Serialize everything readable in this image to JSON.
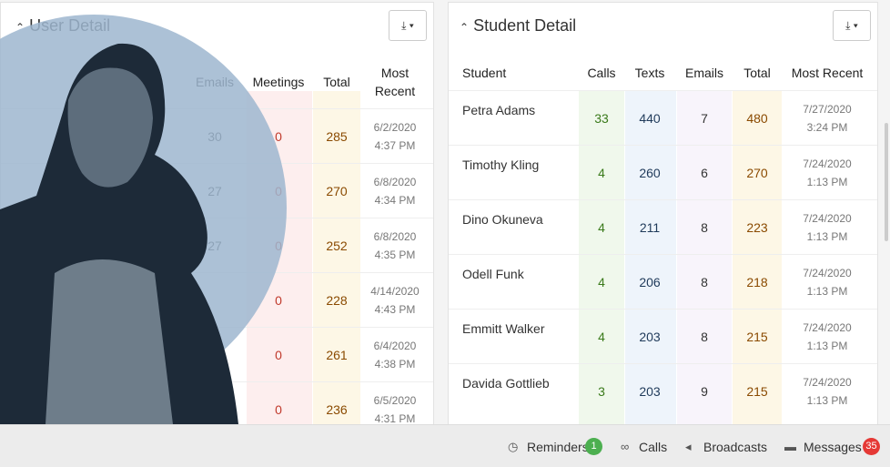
{
  "left_panel": {
    "title": "User Detail",
    "headers": [
      "Emails",
      "Meetings",
      "Total",
      "Most Recent"
    ],
    "rows": [
      {
        "emails": 30,
        "meetings": 0,
        "total": 285,
        "date": "6/2/2020",
        "time": "4:37 PM"
      },
      {
        "emails": 27,
        "meetings": 0,
        "total": 270,
        "date": "6/8/2020",
        "time": "4:34 PM"
      },
      {
        "emails": 27,
        "meetings": 0,
        "total": 252,
        "date": "6/8/2020",
        "time": "4:35 PM"
      },
      {
        "meetings": 0,
        "total": 228,
        "date": "4/14/2020",
        "time": "4:43 PM"
      },
      {
        "meetings": 0,
        "total": 261,
        "date": "6/4/2020",
        "time": "4:38 PM"
      },
      {
        "meetings": 0,
        "total": 236,
        "date": "6/5/2020",
        "time": "4:31 PM"
      }
    ]
  },
  "right_panel": {
    "title": "Student Detail",
    "headers": [
      "Student",
      "Calls",
      "Texts",
      "Emails",
      "Total",
      "Most Recent"
    ],
    "rows": [
      [
        "Petra Adams",
        33,
        440,
        7,
        480,
        "7/27/2020",
        "3:24 PM"
      ],
      [
        "Timothy Kling",
        4,
        260,
        6,
        270,
        "7/24/2020",
        "1:13 PM"
      ],
      [
        "Dino Okuneva",
        4,
        211,
        8,
        223,
        "7/24/2020",
        "1:13 PM"
      ],
      [
        "Odell Funk",
        4,
        206,
        8,
        218,
        "7/24/2020",
        "1:13 PM"
      ],
      [
        "Emmitt Walker",
        4,
        203,
        8,
        215,
        "7/24/2020",
        "1:13 PM"
      ],
      [
        "Davida Gottlieb",
        3,
        203,
        9,
        215,
        "7/24/2020",
        "1:13 PM"
      ]
    ]
  },
  "footer": {
    "items": [
      {
        "label": "Reminders",
        "badge": 1
      },
      {
        "label": "Calls"
      },
      {
        "label": "Broadcasts"
      },
      {
        "label": "Messages",
        "badge": 35
      }
    ]
  }
}
